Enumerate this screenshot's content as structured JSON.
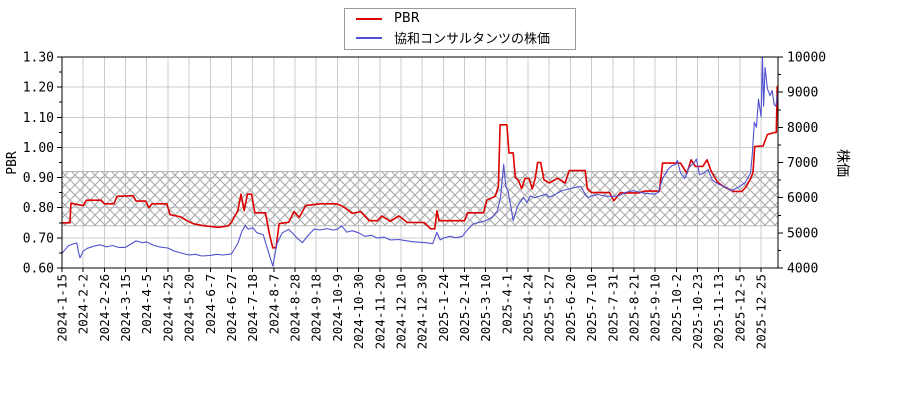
{
  "legend": {
    "items": [
      {
        "label": "PBR",
        "color": "#dd0000"
      },
      {
        "label": "協和コンサルタンツの株価",
        "color": "#5050d0"
      }
    ]
  },
  "chart_data": {
    "type": "line",
    "title": "",
    "grid": {
      "color": "#cccccc",
      "frame_color": "#000000"
    },
    "shaded_band": {
      "axis": "left",
      "from": 0.74,
      "to": 0.92,
      "style": "crosshatch",
      "color": "#a9a9a9"
    },
    "x_axis": {
      "extent_units": 33.8,
      "tick_labels": [
        "2024-1-15",
        "2024-2-2",
        "2024-2-26",
        "2024-3-15",
        "2024-4-5",
        "2024-4-25",
        "2024-5-20",
        "2024-6-7",
        "2024-6-27",
        "2024-7-18",
        "2024-8-7",
        "2024-8-28",
        "2024-9-18",
        "2024-10-9",
        "2024-10-30",
        "2024-11-20",
        "2024-12-10",
        "2024-12-30",
        "2025-1-24",
        "2025-2-14",
        "2025-3-10",
        "2025-4-1",
        "2025-4-24",
        "2025-5-27",
        "2025-6-20",
        "2025-7-10",
        "2025-7-31",
        "2025-8-21",
        "2025-9-10",
        "2025-10-2",
        "2025-10-23",
        "2025-11-13",
        "2025-12-5",
        "2025-12-25"
      ]
    },
    "left_axis": {
      "label": "PBR",
      "min": 0.6,
      "max": 1.3,
      "tick_labels": [
        "0.60",
        "0.70",
        "0.80",
        "0.90",
        "1.00",
        "1.10",
        "1.20",
        "1.30"
      ],
      "tick_values": [
        0.6,
        0.7,
        0.8,
        0.9,
        1.0,
        1.1,
        1.2,
        1.3
      ],
      "minor_tick_values": [
        0.65,
        0.75,
        0.85,
        0.95,
        1.05,
        1.15,
        1.25
      ]
    },
    "right_axis": {
      "label": "株価",
      "min": 4000,
      "max": 10000,
      "tick_labels": [
        "4000",
        "5000",
        "6000",
        "7000",
        "8000",
        "9000",
        "10000"
      ],
      "tick_values": [
        4000,
        5000,
        6000,
        7000,
        8000,
        9000,
        10000
      ],
      "minor_tick_values": [
        4500,
        5500,
        6500,
        7500,
        8500,
        9500
      ]
    },
    "series": [
      {
        "name": "PBR",
        "axis": "left",
        "color": "#dd0000",
        "width": 1.6,
        "points": [
          [
            0,
            0.75
          ],
          [
            0.38,
            0.75
          ],
          [
            0.42,
            0.815
          ],
          [
            0.75,
            0.81
          ],
          [
            1.0,
            0.807
          ],
          [
            1.15,
            0.825
          ],
          [
            1.85,
            0.825
          ],
          [
            2.0,
            0.813
          ],
          [
            2.45,
            0.813
          ],
          [
            2.6,
            0.838
          ],
          [
            3.35,
            0.84
          ],
          [
            3.5,
            0.822
          ],
          [
            3.95,
            0.822
          ],
          [
            4.1,
            0.8
          ],
          [
            4.25,
            0.813
          ],
          [
            4.95,
            0.813
          ],
          [
            5.1,
            0.777
          ],
          [
            5.6,
            0.77
          ],
          [
            5.9,
            0.757
          ],
          [
            6.2,
            0.747
          ],
          [
            6.7,
            0.74
          ],
          [
            7.4,
            0.735
          ],
          [
            7.85,
            0.74
          ],
          [
            8.0,
            0.752
          ],
          [
            8.3,
            0.79
          ],
          [
            8.45,
            0.845
          ],
          [
            8.6,
            0.79
          ],
          [
            8.75,
            0.845
          ],
          [
            8.95,
            0.845
          ],
          [
            9.1,
            0.783
          ],
          [
            9.6,
            0.783
          ],
          [
            9.8,
            0.71
          ],
          [
            9.95,
            0.667
          ],
          [
            10.1,
            0.667
          ],
          [
            10.25,
            0.747
          ],
          [
            10.7,
            0.752
          ],
          [
            10.95,
            0.787
          ],
          [
            11.2,
            0.768
          ],
          [
            11.5,
            0.807
          ],
          [
            12.2,
            0.813
          ],
          [
            12.95,
            0.813
          ],
          [
            13.25,
            0.805
          ],
          [
            13.7,
            0.781
          ],
          [
            14.1,
            0.787
          ],
          [
            14.5,
            0.757
          ],
          [
            14.9,
            0.757
          ],
          [
            15.1,
            0.773
          ],
          [
            15.5,
            0.755
          ],
          [
            15.9,
            0.773
          ],
          [
            16.3,
            0.751
          ],
          [
            17.1,
            0.751
          ],
          [
            17.4,
            0.73
          ],
          [
            17.6,
            0.73
          ],
          [
            17.7,
            0.79
          ],
          [
            17.8,
            0.757
          ],
          [
            19.0,
            0.757
          ],
          [
            19.15,
            0.783
          ],
          [
            19.9,
            0.783
          ],
          [
            20.05,
            0.825
          ],
          [
            20.45,
            0.838
          ],
          [
            20.6,
            0.87
          ],
          [
            20.68,
            1.075
          ],
          [
            21.0,
            1.075
          ],
          [
            21.1,
            0.982
          ],
          [
            21.3,
            0.982
          ],
          [
            21.4,
            0.9
          ],
          [
            21.55,
            0.89
          ],
          [
            21.7,
            0.863
          ],
          [
            21.85,
            0.897
          ],
          [
            22.05,
            0.897
          ],
          [
            22.2,
            0.862
          ],
          [
            22.35,
            0.9
          ],
          [
            22.45,
            0.95
          ],
          [
            22.6,
            0.95
          ],
          [
            22.75,
            0.893
          ],
          [
            23.0,
            0.882
          ],
          [
            23.4,
            0.898
          ],
          [
            23.75,
            0.882
          ],
          [
            23.95,
            0.923
          ],
          [
            24.7,
            0.923
          ],
          [
            24.8,
            0.863
          ],
          [
            25.0,
            0.85
          ],
          [
            25.85,
            0.85
          ],
          [
            26.05,
            0.823
          ],
          [
            26.35,
            0.849
          ],
          [
            27.25,
            0.849
          ],
          [
            27.5,
            0.855
          ],
          [
            28.2,
            0.855
          ],
          [
            28.35,
            0.948
          ],
          [
            29.2,
            0.948
          ],
          [
            29.5,
            0.914
          ],
          [
            29.7,
            0.959
          ],
          [
            29.9,
            0.937
          ],
          [
            30.25,
            0.937
          ],
          [
            30.45,
            0.959
          ],
          [
            30.65,
            0.92
          ],
          [
            30.95,
            0.885
          ],
          [
            31.25,
            0.869
          ],
          [
            31.7,
            0.854
          ],
          [
            32.1,
            0.854
          ],
          [
            32.3,
            0.87
          ],
          [
            32.5,
            0.896
          ],
          [
            32.62,
            0.917
          ],
          [
            32.7,
            1.003
          ],
          [
            33.1,
            1.005
          ],
          [
            33.3,
            1.043
          ],
          [
            33.65,
            1.05
          ],
          [
            33.72,
            1.05
          ],
          [
            33.76,
            1.2
          ],
          [
            33.8,
            1.205
          ]
        ]
      },
      {
        "name": "協和コンサルタンツの株価",
        "axis": "right",
        "color": "#5050d0",
        "width": 1.1,
        "points": [
          [
            0,
            4420
          ],
          [
            0.3,
            4630
          ],
          [
            0.55,
            4690
          ],
          [
            0.7,
            4714
          ],
          [
            0.78,
            4450
          ],
          [
            0.85,
            4290
          ],
          [
            1.0,
            4480
          ],
          [
            1.2,
            4560
          ],
          [
            1.5,
            4620
          ],
          [
            1.8,
            4660
          ],
          [
            2.1,
            4600
          ],
          [
            2.4,
            4640
          ],
          [
            2.7,
            4580
          ],
          [
            3.0,
            4590
          ],
          [
            3.3,
            4700
          ],
          [
            3.5,
            4770
          ],
          [
            3.8,
            4720
          ],
          [
            4.0,
            4743
          ],
          [
            4.3,
            4650
          ],
          [
            4.6,
            4600
          ],
          [
            5.0,
            4570
          ],
          [
            5.3,
            4480
          ],
          [
            5.6,
            4430
          ],
          [
            6.0,
            4370
          ],
          [
            6.3,
            4390
          ],
          [
            6.6,
            4340
          ],
          [
            7.0,
            4357
          ],
          [
            7.3,
            4390
          ],
          [
            7.6,
            4370
          ],
          [
            8.0,
            4400
          ],
          [
            8.3,
            4700
          ],
          [
            8.5,
            5057
          ],
          [
            8.65,
            5200
          ],
          [
            8.8,
            5100
          ],
          [
            9.0,
            5150
          ],
          [
            9.2,
            5000
          ],
          [
            9.5,
            4950
          ],
          [
            9.75,
            4450
          ],
          [
            9.95,
            4057
          ],
          [
            10.15,
            4700
          ],
          [
            10.4,
            5000
          ],
          [
            10.7,
            5100
          ],
          [
            10.9,
            4980
          ],
          [
            11.1,
            4850
          ],
          [
            11.35,
            4723
          ],
          [
            11.65,
            4950
          ],
          [
            11.9,
            5105
          ],
          [
            12.2,
            5080
          ],
          [
            12.5,
            5120
          ],
          [
            12.8,
            5080
          ],
          [
            13.0,
            5100
          ],
          [
            13.2,
            5200
          ],
          [
            13.45,
            5020
          ],
          [
            13.7,
            5060
          ],
          [
            14.0,
            5000
          ],
          [
            14.3,
            4900
          ],
          [
            14.6,
            4930
          ],
          [
            14.9,
            4850
          ],
          [
            15.2,
            4880
          ],
          [
            15.5,
            4800
          ],
          [
            15.9,
            4810
          ],
          [
            16.2,
            4780
          ],
          [
            16.5,
            4750
          ],
          [
            16.9,
            4730
          ],
          [
            17.2,
            4720
          ],
          [
            17.5,
            4690
          ],
          [
            17.7,
            5009
          ],
          [
            17.85,
            4800
          ],
          [
            18.0,
            4850
          ],
          [
            18.3,
            4900
          ],
          [
            18.6,
            4860
          ],
          [
            18.9,
            4900
          ],
          [
            19.1,
            5057
          ],
          [
            19.4,
            5250
          ],
          [
            19.7,
            5300
          ],
          [
            20.0,
            5343
          ],
          [
            20.3,
            5440
          ],
          [
            20.55,
            5620
          ],
          [
            20.7,
            6000
          ],
          [
            20.85,
            6950
          ],
          [
            20.95,
            6300
          ],
          [
            21.05,
            6200
          ],
          [
            21.2,
            5700
          ],
          [
            21.3,
            5343
          ],
          [
            21.5,
            5750
          ],
          [
            21.65,
            5900
          ],
          [
            21.8,
            6000
          ],
          [
            21.95,
            5860
          ],
          [
            22.1,
            6050
          ],
          [
            22.3,
            6000
          ],
          [
            22.6,
            6050
          ],
          [
            22.85,
            6100
          ],
          [
            23.0,
            6010
          ],
          [
            23.3,
            6100
          ],
          [
            23.6,
            6200
          ],
          [
            23.95,
            6250
          ],
          [
            24.3,
            6300
          ],
          [
            24.5,
            6314
          ],
          [
            24.7,
            6100
          ],
          [
            24.85,
            6000
          ],
          [
            25.0,
            6057
          ],
          [
            25.3,
            6090
          ],
          [
            25.6,
            6050
          ],
          [
            26.0,
            6030
          ],
          [
            26.3,
            6060
          ],
          [
            26.6,
            6150
          ],
          [
            26.95,
            6200
          ],
          [
            27.3,
            6150
          ],
          [
            27.6,
            6120
          ],
          [
            27.95,
            6100
          ],
          [
            28.15,
            6150
          ],
          [
            28.35,
            6543
          ],
          [
            28.6,
            6800
          ],
          [
            28.8,
            6914
          ],
          [
            28.95,
            6940
          ],
          [
            29.05,
            7057
          ],
          [
            29.2,
            6700
          ],
          [
            29.4,
            6543
          ],
          [
            29.6,
            6857
          ],
          [
            29.85,
            7000
          ],
          [
            29.95,
            7100
          ],
          [
            30.1,
            6650
          ],
          [
            30.3,
            6700
          ],
          [
            30.5,
            6800
          ],
          [
            30.7,
            6500
          ],
          [
            30.95,
            6400
          ],
          [
            31.25,
            6314
          ],
          [
            31.6,
            6200
          ],
          [
            31.95,
            6300
          ],
          [
            32.25,
            6430
          ],
          [
            32.5,
            6700
          ],
          [
            32.58,
            7200
          ],
          [
            32.68,
            8143
          ],
          [
            32.78,
            8000
          ],
          [
            32.88,
            8800
          ],
          [
            33.0,
            8300
          ],
          [
            33.07,
            10000
          ],
          [
            33.12,
            8600
          ],
          [
            33.19,
            9700
          ],
          [
            33.3,
            9100
          ],
          [
            33.42,
            8900
          ],
          [
            33.52,
            9050
          ],
          [
            33.62,
            8650
          ],
          [
            33.7,
            8600
          ],
          [
            33.8,
            9050
          ]
        ]
      }
    ]
  }
}
